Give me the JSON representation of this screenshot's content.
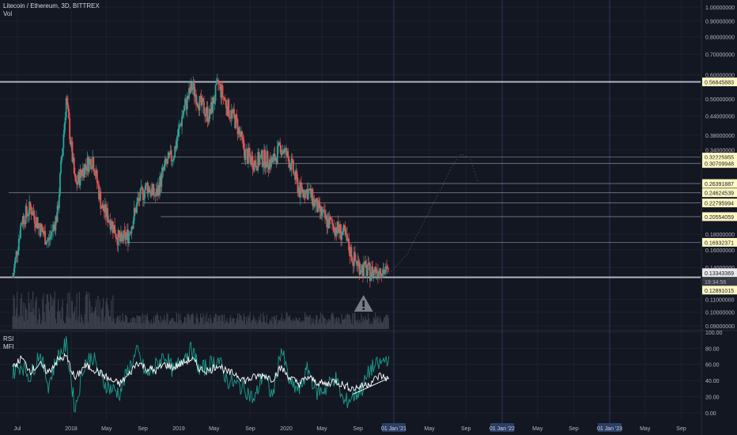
{
  "header": {
    "title": "Litecoin / Ethereum, 3D, BITTREX",
    "vol_label": "Vol",
    "rsi_label": "RSI",
    "mfi_label": "MFI"
  },
  "colors": {
    "background": "#131722",
    "grid": "#1e222d",
    "up": "#26a69a",
    "down": "#ef5350",
    "level_line": "#787b86",
    "strong_line": "#b2b5be",
    "label_bg": "#fff9c4",
    "label_text": "#131722",
    "rsi": "#ffffff",
    "mfi": "#1b9e8f",
    "warning": "#787b86",
    "vertical_marker": "#2a3a5c"
  },
  "chart_data": [
    {
      "type": "candlestick",
      "title": "Litecoin / Ethereum, 3D, BITTREX",
      "y_scale": "log",
      "ylim": [
        0.088,
        1.03
      ],
      "y_ticks": [
        {
          "value": 1.0,
          "label": "1.00000000"
        },
        {
          "value": 0.9,
          "label": "0.90000000"
        },
        {
          "value": 0.8,
          "label": "0.80000000"
        },
        {
          "value": 0.7,
          "label": "0.70000000"
        },
        {
          "value": 0.6,
          "label": "0.60000000"
        },
        {
          "value": 0.5,
          "label": "0.50000000"
        },
        {
          "value": 0.44,
          "label": "0.44000000"
        },
        {
          "value": 0.38,
          "label": "0.38000000"
        },
        {
          "value": 0.34,
          "label": "0.34000000"
        },
        {
          "value": 0.18,
          "label": "0.18000000"
        },
        {
          "value": 0.16,
          "label": "0.16000000"
        },
        {
          "value": 0.14,
          "label": "0.14000000"
        },
        {
          "value": 0.11,
          "label": "0.11000000"
        },
        {
          "value": 0.1,
          "label": "0.10000000"
        },
        {
          "value": 0.09,
          "label": "0.09000000"
        }
      ],
      "x_ticks": [
        "Jul",
        "2018",
        "May",
        "Sep",
        "2019",
        "May",
        "Sep",
        "2020",
        "May",
        "Sep",
        "01 Jan '21",
        "May",
        "Sep",
        "01 Jan '22",
        "May",
        "Sep",
        "01 Jan '23",
        "May",
        "Sep"
      ],
      "highlighted_ticks": [
        "01 Jan '21",
        "01 Jan '22",
        "01 Jan '23"
      ],
      "price_series": [
        {
          "date": "2017-06",
          "value": 0.13
        },
        {
          "date": "2017-07",
          "value": 0.2
        },
        {
          "date": "2017-08",
          "value": 0.22
        },
        {
          "date": "2017-09",
          "value": 0.19
        },
        {
          "date": "2017-10",
          "value": 0.17
        },
        {
          "date": "2017-11",
          "value": 0.21
        },
        {
          "date": "2017-12",
          "value": 0.5
        },
        {
          "date": "2018-01",
          "value": 0.26
        },
        {
          "date": "2018-02",
          "value": 0.3
        },
        {
          "date": "2018-03",
          "value": 0.32
        },
        {
          "date": "2018-04",
          "value": 0.22
        },
        {
          "date": "2018-05",
          "value": 0.2
        },
        {
          "date": "2018-06",
          "value": 0.17
        },
        {
          "date": "2018-07",
          "value": 0.18
        },
        {
          "date": "2018-08",
          "value": 0.23
        },
        {
          "date": "2018-09",
          "value": 0.26
        },
        {
          "date": "2018-10",
          "value": 0.24
        },
        {
          "date": "2018-11",
          "value": 0.3
        },
        {
          "date": "2018-12",
          "value": 0.33
        },
        {
          "date": "2019-01",
          "value": 0.45
        },
        {
          "date": "2019-02",
          "value": 0.55
        },
        {
          "date": "2019-03",
          "value": 0.48
        },
        {
          "date": "2019-04",
          "value": 0.44
        },
        {
          "date": "2019-05",
          "value": 0.56
        },
        {
          "date": "2019-06",
          "value": 0.47
        },
        {
          "date": "2019-07",
          "value": 0.42
        },
        {
          "date": "2019-08",
          "value": 0.33
        },
        {
          "date": "2019-09",
          "value": 0.31
        },
        {
          "date": "2019-10",
          "value": 0.32
        },
        {
          "date": "2019-11",
          "value": 0.31
        },
        {
          "date": "2019-12",
          "value": 0.35
        },
        {
          "date": "2020-01",
          "value": 0.31
        },
        {
          "date": "2020-02",
          "value": 0.25
        },
        {
          "date": "2020-03",
          "value": 0.25
        },
        {
          "date": "2020-04",
          "value": 0.22
        },
        {
          "date": "2020-05",
          "value": 0.2
        },
        {
          "date": "2020-06",
          "value": 0.19
        },
        {
          "date": "2020-07",
          "value": 0.18
        },
        {
          "date": "2020-08",
          "value": 0.15
        },
        {
          "date": "2020-09",
          "value": 0.14
        },
        {
          "date": "2020-10",
          "value": 0.135
        },
        {
          "date": "2020-11",
          "value": 0.14
        },
        {
          "date": "2020-12",
          "value": 0.1334
        }
      ],
      "projection": [
        {
          "date": "2020-12",
          "value": 0.1334
        },
        {
          "date": "2021-02",
          "value": 0.155
        },
        {
          "date": "2021-04",
          "value": 0.2
        },
        {
          "date": "2021-06",
          "value": 0.26
        },
        {
          "date": "2021-07",
          "value": 0.3
        },
        {
          "date": "2021-08",
          "value": 0.33
        },
        {
          "date": "2021-09",
          "value": 0.32
        },
        {
          "date": "2021-10",
          "value": 0.26
        }
      ],
      "horizontal_levels": [
        {
          "value": 0.56845883,
          "label": "0.56845883",
          "style": "strong",
          "from": "2017-06"
        },
        {
          "value": 0.32225955,
          "label": "0.32225955",
          "style": "thin",
          "from": "2018-03"
        },
        {
          "value": 0.30709948,
          "label": "0.30709948",
          "style": "thin",
          "from": "2019-08"
        },
        {
          "value": 0.26391887,
          "label": "0.26391887",
          "style": "thin",
          "from": "2020-02"
        },
        {
          "value": 0.24624539,
          "label": "0.24624539",
          "style": "thin",
          "from": "2017-06"
        },
        {
          "value": 0.22795994,
          "label": "0.22795994",
          "style": "thin",
          "from": "2018-09"
        },
        {
          "value": 0.20554059,
          "label": "0.20554059",
          "style": "thin",
          "from": "2018-11"
        },
        {
          "value": 0.16932371,
          "label": "0.16932371",
          "style": "thin",
          "from": "2018-07"
        },
        {
          "value": 0.13,
          "label": "",
          "style": "strong",
          "from": "2017-06"
        }
      ],
      "price_labels": [
        {
          "value": 0.13343369,
          "label": "0.13343369"
        },
        {
          "value": 0.13,
          "label": "19:34:56"
        },
        {
          "value": 0.12891015,
          "label": "0.12891015"
        }
      ],
      "warning_marker": {
        "date": "2020-09",
        "icon": "warning-icon"
      }
    },
    {
      "type": "line",
      "ylim": [
        -8,
        100
      ],
      "y_ticks": [
        100,
        80,
        60,
        40,
        20,
        0
      ],
      "y_tick_labels": [
        "100.00",
        "80.00",
        "60.00",
        "40.00",
        "20.00",
        "0.00"
      ],
      "series": [
        {
          "name": "RSI",
          "values": [
            {
              "date": "2017-06",
              "value": 55
            },
            {
              "date": "2017-07",
              "value": 68
            },
            {
              "date": "2017-08",
              "value": 52
            },
            {
              "date": "2017-09",
              "value": 60
            },
            {
              "date": "2017-10",
              "value": 50
            },
            {
              "date": "2017-11",
              "value": 65
            },
            {
              "date": "2017-12",
              "value": 70
            },
            {
              "date": "2018-01",
              "value": 42
            },
            {
              "date": "2018-02",
              "value": 58
            },
            {
              "date": "2018-03",
              "value": 55
            },
            {
              "date": "2018-04",
              "value": 48
            },
            {
              "date": "2018-05",
              "value": 40
            },
            {
              "date": "2018-06",
              "value": 36
            },
            {
              "date": "2018-07",
              "value": 47
            },
            {
              "date": "2018-08",
              "value": 63
            },
            {
              "date": "2018-09",
              "value": 55
            },
            {
              "date": "2018-10",
              "value": 52
            },
            {
              "date": "2018-11",
              "value": 60
            },
            {
              "date": "2018-12",
              "value": 56
            },
            {
              "date": "2019-01",
              "value": 62
            },
            {
              "date": "2019-02",
              "value": 67
            },
            {
              "date": "2019-03",
              "value": 54
            },
            {
              "date": "2019-04",
              "value": 52
            },
            {
              "date": "2019-05",
              "value": 60
            },
            {
              "date": "2019-06",
              "value": 50
            },
            {
              "date": "2019-07",
              "value": 48
            },
            {
              "date": "2019-08",
              "value": 40
            },
            {
              "date": "2019-09",
              "value": 44
            },
            {
              "date": "2019-10",
              "value": 47
            },
            {
              "date": "2019-11",
              "value": 42
            },
            {
              "date": "2019-12",
              "value": 56
            },
            {
              "date": "2020-01",
              "value": 43
            },
            {
              "date": "2020-02",
              "value": 36
            },
            {
              "date": "2020-03",
              "value": 44
            },
            {
              "date": "2020-04",
              "value": 38
            },
            {
              "date": "2020-05",
              "value": 35
            },
            {
              "date": "2020-06",
              "value": 40
            },
            {
              "date": "2020-07",
              "value": 34
            },
            {
              "date": "2020-08",
              "value": 30
            },
            {
              "date": "2020-09",
              "value": 33
            },
            {
              "date": "2020-10",
              "value": 38
            },
            {
              "date": "2020-11",
              "value": 46
            },
            {
              "date": "2020-12",
              "value": 42
            }
          ]
        },
        {
          "name": "MFI",
          "values": [
            {
              "date": "2017-06",
              "value": 50
            },
            {
              "date": "2017-07",
              "value": 60
            },
            {
              "date": "2017-08",
              "value": 45
            },
            {
              "date": "2017-09",
              "value": 75
            },
            {
              "date": "2017-10",
              "value": 35
            },
            {
              "date": "2017-11",
              "value": 68
            },
            {
              "date": "2017-12",
              "value": 85
            },
            {
              "date": "2018-01",
              "value": 5
            },
            {
              "date": "2018-02",
              "value": 62
            },
            {
              "date": "2018-03",
              "value": 70
            },
            {
              "date": "2018-04",
              "value": 40
            },
            {
              "date": "2018-05",
              "value": 30
            },
            {
              "date": "2018-06",
              "value": 25
            },
            {
              "date": "2018-07",
              "value": 55
            },
            {
              "date": "2018-08",
              "value": 75
            },
            {
              "date": "2018-09",
              "value": 45
            },
            {
              "date": "2018-10",
              "value": 58
            },
            {
              "date": "2018-11",
              "value": 72
            },
            {
              "date": "2018-12",
              "value": 50
            },
            {
              "date": "2019-01",
              "value": 70
            },
            {
              "date": "2019-02",
              "value": 78
            },
            {
              "date": "2019-03",
              "value": 52
            },
            {
              "date": "2019-04",
              "value": 60
            },
            {
              "date": "2019-05",
              "value": 66
            },
            {
              "date": "2019-06",
              "value": 40
            },
            {
              "date": "2019-07",
              "value": 35
            },
            {
              "date": "2019-08",
              "value": 30
            },
            {
              "date": "2019-09",
              "value": 15
            },
            {
              "date": "2019-10",
              "value": 50
            },
            {
              "date": "2019-11",
              "value": 20
            },
            {
              "date": "2019-12",
              "value": 80
            },
            {
              "date": "2020-01",
              "value": 35
            },
            {
              "date": "2020-02",
              "value": 28
            },
            {
              "date": "2020-03",
              "value": 55
            },
            {
              "date": "2020-04",
              "value": 25
            },
            {
              "date": "2020-05",
              "value": 30
            },
            {
              "date": "2020-06",
              "value": 45
            },
            {
              "date": "2020-07",
              "value": 12
            },
            {
              "date": "2020-08",
              "value": 20
            },
            {
              "date": "2020-09",
              "value": 30
            },
            {
              "date": "2020-10",
              "value": 55
            },
            {
              "date": "2020-11",
              "value": 60
            },
            {
              "date": "2020-12",
              "value": 70
            }
          ]
        }
      ],
      "trendline": [
        {
          "date": "2020-08",
          "value": 23
        },
        {
          "date": "2020-12",
          "value": 43
        }
      ]
    }
  ]
}
